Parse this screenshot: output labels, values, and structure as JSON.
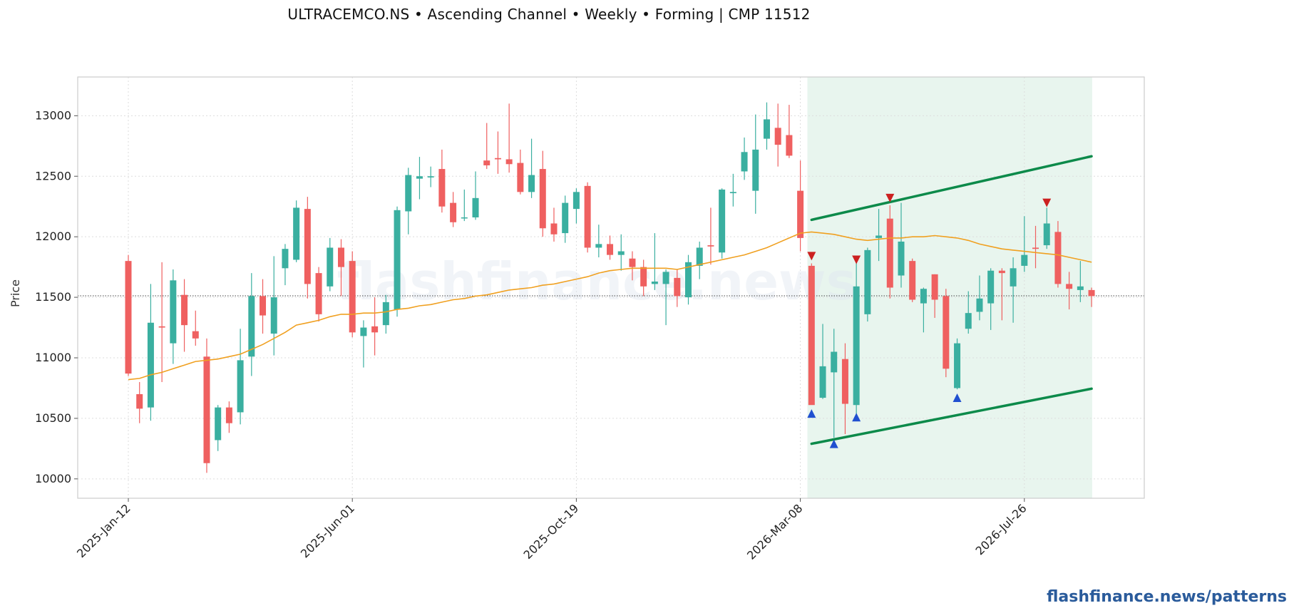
{
  "chart_data": {
    "type": "candlestick",
    "title": "ULTRACEMCO.NS  •  Ascending Channel  •  Weekly  •  Forming  |  CMP 11512",
    "ylabel": "Price",
    "xlabel": "",
    "ylim": [
      9840,
      13320
    ],
    "yticks": [
      10000,
      10500,
      11000,
      11500,
      12000,
      12500,
      13000
    ],
    "start_date": "2025-01-12",
    "xticks": [
      {
        "label": "2025-Jan-12",
        "date": "2025-01-12"
      },
      {
        "label": "2025-Jun-01",
        "date": "2025-06-01"
      },
      {
        "label": "2025-Oct-19",
        "date": "2025-10-19"
      },
      {
        "label": "2026-Mar-08",
        "date": "2026-03-08"
      },
      {
        "label": "2026-Jul-26",
        "date": "2026-07-26"
      }
    ],
    "grid": true,
    "cmp": 11512,
    "colors": {
      "up": "#3aafa0",
      "down": "#ef6060",
      "ma": "#f0a020",
      "channel": "#0c8a4a",
      "zone": "#e8f5ee",
      "top_marker": "#cc2020",
      "bottom_marker": "#2050d0",
      "cmp_line": "#444444"
    },
    "candles": [
      [
        "2025-01-12",
        11800,
        11850,
        10850,
        10870
      ],
      [
        "2025-01-19",
        10700,
        10800,
        10460,
        10580
      ],
      [
        "2025-01-26",
        10590,
        11610,
        10480,
        11290
      ],
      [
        "2025-02-02",
        11260,
        11790,
        10800,
        11250
      ],
      [
        "2025-02-09",
        11120,
        11730,
        10950,
        11640
      ],
      [
        "2025-02-16",
        11520,
        11650,
        11050,
        11270
      ],
      [
        "2025-02-23",
        11220,
        11390,
        11100,
        11160
      ],
      [
        "2025-03-02",
        11010,
        11160,
        10050,
        10130
      ],
      [
        "2025-03-09",
        10320,
        10610,
        10230,
        10590
      ],
      [
        "2025-03-16",
        10590,
        10640,
        10380,
        10460
      ],
      [
        "2025-03-23",
        10550,
        11240,
        10450,
        10980
      ],
      [
        "2025-03-30",
        11010,
        11700,
        10850,
        11510
      ],
      [
        "2025-04-06",
        11510,
        11650,
        11200,
        11350
      ],
      [
        "2025-04-13",
        11200,
        11840,
        11020,
        11500
      ],
      [
        "2025-04-20",
        11740,
        11940,
        11600,
        11900
      ],
      [
        "2025-04-27",
        11810,
        12300,
        11790,
        12240
      ],
      [
        "2025-05-04",
        12230,
        12330,
        11490,
        11610
      ],
      [
        "2025-05-11",
        11700,
        11750,
        11300,
        11360
      ],
      [
        "2025-05-18",
        11590,
        11990,
        11550,
        11910
      ],
      [
        "2025-05-25",
        11910,
        11980,
        11510,
        11750
      ],
      [
        "2025-06-01",
        11800,
        11880,
        11170,
        11210
      ],
      [
        "2025-06-08",
        11180,
        11310,
        10920,
        11250
      ],
      [
        "2025-06-15",
        11260,
        11500,
        11020,
        11210
      ],
      [
        "2025-06-22",
        11270,
        11520,
        11200,
        11460
      ],
      [
        "2025-06-29",
        11400,
        12250,
        11340,
        12220
      ],
      [
        "2025-07-06",
        12210,
        12570,
        12020,
        12510
      ],
      [
        "2025-07-13",
        12480,
        12660,
        12310,
        12500
      ],
      [
        "2025-07-20",
        12490,
        12580,
        12410,
        12500
      ],
      [
        "2025-07-27",
        12560,
        12720,
        12200,
        12250
      ],
      [
        "2025-08-03",
        12280,
        12370,
        12080,
        12120
      ],
      [
        "2025-08-10",
        12160,
        12390,
        12130,
        12160
      ],
      [
        "2025-08-17",
        12160,
        12540,
        12140,
        12320
      ],
      [
        "2025-08-24",
        12630,
        12940,
        12560,
        12590
      ],
      [
        "2025-08-31",
        12650,
        12870,
        12520,
        12640
      ],
      [
        "2025-09-07",
        12640,
        13100,
        12530,
        12600
      ],
      [
        "2025-09-14",
        12610,
        12720,
        12350,
        12370
      ],
      [
        "2025-09-21",
        12370,
        12810,
        12320,
        12510
      ],
      [
        "2025-09-28",
        12560,
        12710,
        12000,
        12070
      ],
      [
        "2025-10-05",
        12110,
        12240,
        11960,
        12020
      ],
      [
        "2025-10-12",
        12030,
        12340,
        11950,
        12280
      ],
      [
        "2025-10-19",
        12230,
        12400,
        12110,
        12370
      ],
      [
        "2025-10-26",
        12420,
        12450,
        11870,
        11910
      ],
      [
        "2025-11-02",
        11910,
        12100,
        11830,
        11940
      ],
      [
        "2025-11-09",
        11940,
        12010,
        11810,
        11850
      ],
      [
        "2025-11-16",
        11850,
        12020,
        11720,
        11880
      ],
      [
        "2025-11-23",
        11820,
        11880,
        11640,
        11750
      ],
      [
        "2025-11-30",
        11750,
        11810,
        11510,
        11590
      ],
      [
        "2025-12-07",
        11610,
        12030,
        11560,
        11630
      ],
      [
        "2025-12-14",
        11610,
        11730,
        11270,
        11710
      ],
      [
        "2025-12-21",
        11660,
        11730,
        11420,
        11510
      ],
      [
        "2025-12-28",
        11500,
        11850,
        11440,
        11790
      ],
      [
        "2026-01-04",
        11760,
        11960,
        11650,
        11910
      ],
      [
        "2026-01-11",
        11930,
        12240,
        11770,
        11920
      ],
      [
        "2026-01-18",
        11870,
        12400,
        11820,
        12390
      ],
      [
        "2026-01-25",
        12360,
        12520,
        12250,
        12370
      ],
      [
        "2026-02-01",
        12540,
        12820,
        12470,
        12700
      ],
      [
        "2026-02-08",
        12380,
        13010,
        12190,
        12720
      ],
      [
        "2026-02-15",
        12810,
        13110,
        12720,
        12970
      ],
      [
        "2026-02-22",
        12900,
        13100,
        12580,
        12760
      ],
      [
        "2026-03-01",
        12840,
        13090,
        12650,
        12670
      ],
      [
        "2026-03-08",
        12380,
        12630,
        11880,
        11990
      ],
      [
        "2026-03-15",
        11760,
        11780,
        10620,
        10610
      ],
      [
        "2026-03-22",
        10670,
        11280,
        10660,
        10930
      ],
      [
        "2026-03-29",
        10880,
        11240,
        10340,
        11050
      ],
      [
        "2026-04-05",
        10990,
        11120,
        10370,
        10620
      ],
      [
        "2026-04-12",
        10610,
        11810,
        10530,
        11590
      ],
      [
        "2026-04-19",
        11360,
        11910,
        11300,
        11890
      ],
      [
        "2026-04-26",
        11990,
        12230,
        11800,
        12010
      ],
      [
        "2026-05-03",
        12150,
        12260,
        11490,
        11580
      ],
      [
        "2026-05-10",
        11680,
        12280,
        11580,
        11960
      ],
      [
        "2026-05-17",
        11800,
        11820,
        11460,
        11480
      ],
      [
        "2026-05-24",
        11450,
        11580,
        11210,
        11570
      ],
      [
        "2026-05-31",
        11690,
        11690,
        11330,
        11480
      ],
      [
        "2026-06-07",
        11510,
        11570,
        10840,
        10910
      ],
      [
        "2026-06-14",
        10750,
        11160,
        10740,
        11120
      ],
      [
        "2026-06-21",
        11240,
        11550,
        11200,
        11370
      ],
      [
        "2026-06-28",
        11380,
        11680,
        11310,
        11490
      ],
      [
        "2026-07-05",
        11450,
        11740,
        11230,
        11720
      ],
      [
        "2026-07-12",
        11720,
        11740,
        11310,
        11700
      ],
      [
        "2026-07-19",
        11590,
        11830,
        11290,
        11740
      ],
      [
        "2026-07-26",
        11760,
        12170,
        11710,
        11850
      ],
      [
        "2026-08-02",
        11910,
        12090,
        11740,
        11900
      ],
      [
        "2026-08-09",
        11930,
        12240,
        11900,
        12110
      ],
      [
        "2026-08-16",
        12040,
        12130,
        11580,
        11610
      ],
      [
        "2026-08-23",
        11610,
        11710,
        11400,
        11570
      ],
      [
        "2026-08-30",
        11560,
        11800,
        11460,
        11590
      ],
      [
        "2026-09-06",
        11560,
        11580,
        11420,
        11510
      ]
    ],
    "moving_average": [
      10820,
      10830,
      10860,
      10880,
      10910,
      10940,
      10970,
      10980,
      10990,
      11010,
      11030,
      11070,
      11110,
      11160,
      11210,
      11270,
      11290,
      11310,
      11340,
      11360,
      11360,
      11370,
      11370,
      11380,
      11400,
      11410,
      11430,
      11440,
      11460,
      11480,
      11490,
      11510,
      11520,
      11540,
      11560,
      11570,
      11580,
      11600,
      11610,
      11630,
      11650,
      11670,
      11700,
      11720,
      11730,
      11740,
      11740,
      11740,
      11740,
      11730,
      11750,
      11770,
      11790,
      11810,
      11830,
      11850,
      11880,
      11910,
      11950,
      11990,
      12030,
      12040,
      12030,
      12020,
      12000,
      11980,
      11970,
      11980,
      11990,
      11990,
      12000,
      12000,
      12010,
      12000,
      11990,
      11970,
      11940,
      11920,
      11900,
      11890,
      11880,
      11870,
      11860,
      11850,
      11830,
      11810,
      11790
    ],
    "channel": {
      "upper": [
        {
          "date": "2026-03-15",
          "value": 12140
        },
        {
          "date": "2026-09-06",
          "value": 12665
        }
      ],
      "lower": [
        {
          "date": "2026-03-15",
          "value": 10290
        },
        {
          "date": "2026-09-06",
          "value": 10745
        }
      ]
    },
    "pattern_zone": {
      "start": "2026-03-15",
      "end": "2026-09-06"
    },
    "markers": [
      {
        "type": "top",
        "date": "2026-03-15",
        "value": 11840
      },
      {
        "type": "bottom",
        "date": "2026-03-15",
        "value": 10540
      },
      {
        "type": "bottom",
        "date": "2026-03-29",
        "value": 10290
      },
      {
        "type": "top",
        "date": "2026-04-12",
        "value": 11810
      },
      {
        "type": "bottom",
        "date": "2026-04-12",
        "value": 10510
      },
      {
        "type": "top",
        "date": "2026-05-03",
        "value": 12320
      },
      {
        "type": "bottom",
        "date": "2026-06-14",
        "value": 10670
      },
      {
        "type": "top",
        "date": "2026-08-09",
        "value": 12280
      }
    ],
    "watermark": "flashfinance.news"
  },
  "footer": {
    "link": "flashfinance.news/patterns"
  }
}
